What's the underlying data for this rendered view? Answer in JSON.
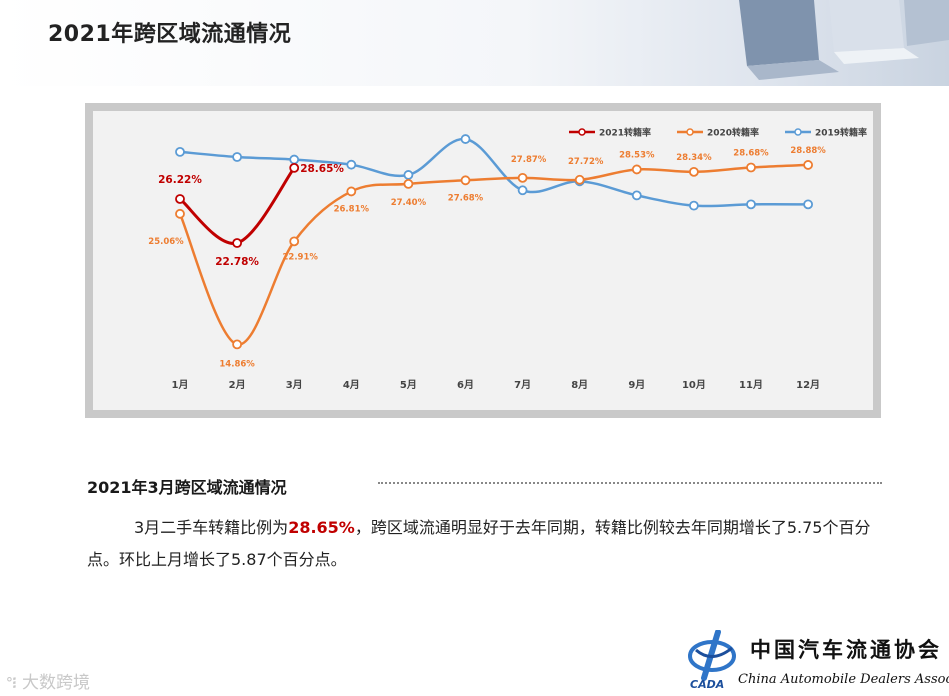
{
  "page": {
    "title": "2021年跨区域流通情况"
  },
  "chart_data": {
    "type": "line",
    "categories": [
      "1月",
      "2月",
      "3月",
      "4月",
      "5月",
      "6月",
      "7月",
      "8月",
      "9月",
      "10月",
      "11月",
      "12月"
    ],
    "ylim": [
      12,
      32
    ],
    "grid": false,
    "legend_position": "top-right",
    "series": [
      {
        "name": "2021转籍率",
        "color": "#c00000",
        "values": [
          26.22,
          22.78,
          28.65,
          null,
          null,
          null,
          null,
          null,
          null,
          null,
          null,
          null
        ],
        "labels": [
          "26.22%",
          "22.78%",
          "28.65%"
        ]
      },
      {
        "name": "2020转籍率",
        "color": "#ed7d31",
        "values": [
          25.06,
          14.86,
          22.91,
          26.81,
          27.4,
          27.68,
          27.87,
          27.72,
          28.53,
          28.34,
          28.68,
          28.88
        ],
        "labels": [
          "25.06%",
          "14.86%",
          "22.91%",
          "26.81%",
          "27.40%",
          "27.68%",
          "27.87%",
          "27.72%",
          "28.53%",
          "28.34%",
          "28.68%",
          "28.88%"
        ]
      },
      {
        "name": "2019转籍率",
        "color": "#5b9bd5",
        "values": [
          29.9,
          29.5,
          29.3,
          28.9,
          28.1,
          30.9,
          26.9,
          27.6,
          26.5,
          25.7,
          25.8,
          25.8
        ]
      }
    ]
  },
  "section": {
    "heading": "2021年3月跨区域流通情况",
    "para_prefix": "3月二手车转籍比例为",
    "para_highlight": "28.65%",
    "para_suffix": "，跨区域流通明显好于去年同期，转籍比例较去年同期增长了5.75个百分点。环比上月增长了5.87个百分点。"
  },
  "watermark": {
    "text": "大数跨境"
  },
  "logo": {
    "cn": "中国汽车流通协会",
    "en": "China Automobile Dealers Association",
    "abbr": "CADA"
  }
}
